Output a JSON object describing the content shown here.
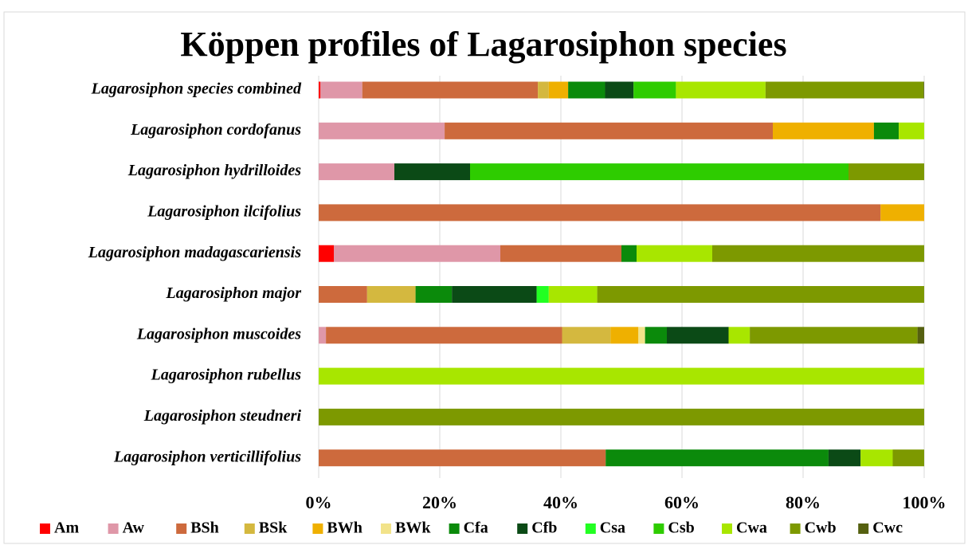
{
  "chart_data": {
    "type": "stacked_barh",
    "title": "Köppen profiles of Lagarosiphon species",
    "categories": [
      "Lagarosiphon species combined",
      "Lagarosiphon cordofanus",
      "Lagarosiphon hydrilloides",
      "Lagarosiphon ilcifolius",
      "Lagarosiphon madagascariensis",
      "Lagarosiphon major",
      "Lagarosiphon muscoides",
      "Lagarosiphon rubellus",
      "Lagarosiphon steudneri",
      "Lagarosiphon verticillifolius"
    ],
    "series": [
      {
        "name": "Am",
        "color": "#ff0000",
        "values": [
          0.3,
          0,
          0,
          0,
          2.5,
          0,
          0,
          0,
          0,
          0
        ]
      },
      {
        "name": "Aw",
        "color": "#df97a8",
        "values": [
          6.9,
          20.8,
          12.5,
          0,
          27.5,
          0,
          1.2,
          0,
          0,
          0
        ]
      },
      {
        "name": "BSh",
        "color": "#cd6a3d",
        "values": [
          29,
          54.2,
          0,
          92.8,
          20,
          8,
          39,
          0,
          0,
          47.4
        ]
      },
      {
        "name": "BSk",
        "color": "#d4b83f",
        "values": [
          1.8,
          0,
          0,
          0,
          0,
          8,
          8,
          0,
          0,
          0
        ]
      },
      {
        "name": "BWh",
        "color": "#efb000",
        "values": [
          3.2,
          16.7,
          0,
          7.2,
          0,
          0,
          4.6,
          0,
          0,
          0
        ]
      },
      {
        "name": "BWk",
        "color": "#f2e38a",
        "values": [
          0,
          0,
          0,
          0,
          0,
          0,
          1.1,
          0,
          0,
          0
        ]
      },
      {
        "name": "Cfa",
        "color": "#0b8a0b",
        "values": [
          6.1,
          4.1,
          0,
          0,
          2.5,
          6,
          3.6,
          0,
          0,
          36.8
        ]
      },
      {
        "name": "Cfb",
        "color": "#0b4a16",
        "values": [
          4.7,
          0,
          12.5,
          0,
          0,
          14,
          10.2,
          0,
          0,
          5.3
        ]
      },
      {
        "name": "Csa",
        "color": "#22ff22",
        "values": [
          0,
          0,
          0,
          0,
          0,
          2,
          0,
          0,
          0,
          0
        ]
      },
      {
        "name": "Csb",
        "color": "#2ecc00",
        "values": [
          7,
          0,
          62.5,
          0,
          0,
          0,
          0,
          0,
          0,
          0
        ]
      },
      {
        "name": "Cwa",
        "color": "#a8e600",
        "values": [
          14.8,
          4.2,
          0,
          0,
          12.5,
          8,
          3.5,
          100,
          0,
          5.3
        ]
      },
      {
        "name": "Cwb",
        "color": "#7d9900",
        "values": [
          26.1,
          0,
          12.5,
          0,
          35,
          54,
          27.7,
          0,
          100,
          5.2
        ]
      },
      {
        "name": "Cwc",
        "color": "#556010",
        "values": [
          0.1,
          0,
          0,
          0,
          0,
          0,
          1.1,
          0,
          0,
          0
        ]
      }
    ],
    "xlim": [
      0,
      100
    ],
    "xticks": [
      {
        "value": 0,
        "label": "0%"
      },
      {
        "value": 20,
        "label": "20%"
      },
      {
        "value": 40,
        "label": "40%"
      },
      {
        "value": 60,
        "label": "60%"
      },
      {
        "value": 80,
        "label": "80%"
      },
      {
        "value": 100,
        "label": "100%"
      }
    ],
    "grid": true
  }
}
